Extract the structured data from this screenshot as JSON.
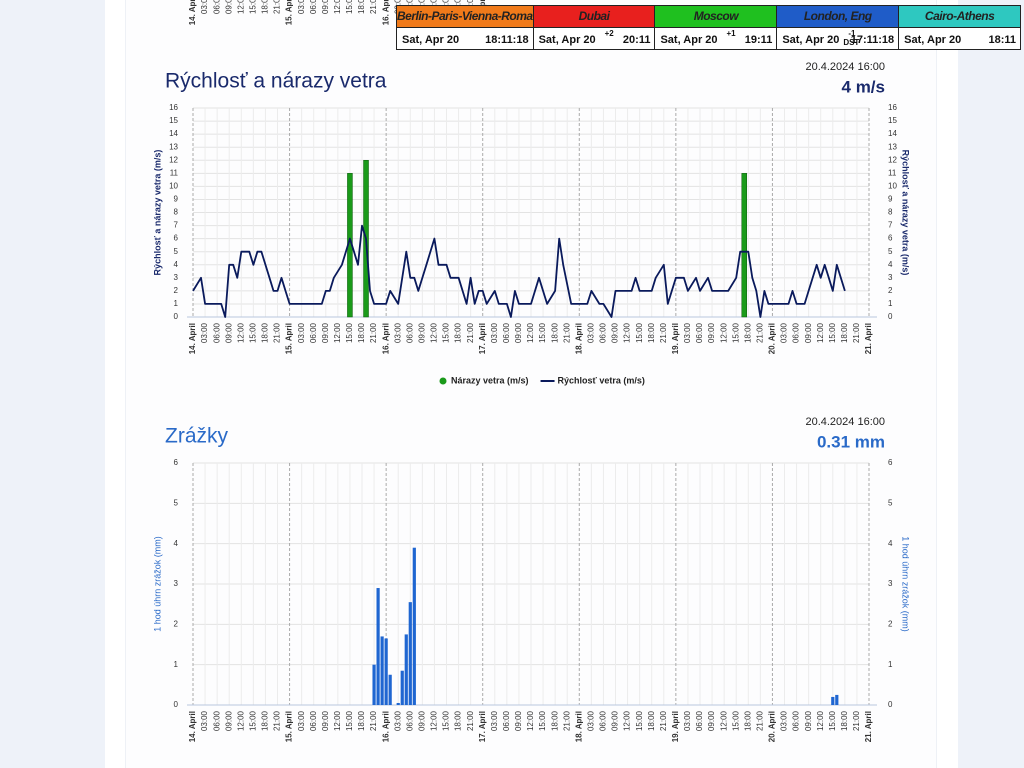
{
  "clocks": [
    {
      "city": "Berlin-Paris-Vienna-Roma",
      "date": "Sat, Apr 20",
      "time": "18:11:18",
      "color": "#f07a1a"
    },
    {
      "city": "Dubai",
      "date": "Sat, Apr 20",
      "offset": "+2",
      "time": "20:11",
      "color": "#e8201e"
    },
    {
      "city": "Moscow",
      "date": "Sat, Apr 20",
      "offset": "+1",
      "time": "19:11",
      "color": "#1fc01f"
    },
    {
      "city": "London, Eng",
      "date": "Sat, Apr 20",
      "offset": "-1",
      "dst": "DST",
      "time": "17:11:18",
      "color": "#1f5cc8"
    },
    {
      "city": "Cairo-Athens",
      "date": "Sat, Apr 20",
      "time": "18:11",
      "color": "#2ec8c0"
    }
  ],
  "chart_data": [
    {
      "type": "line",
      "title": "Rýchlosť a nárazy vetra",
      "timestamp": "20.4.2024 16:00",
      "current": "4 m/s",
      "ylabel": "Rýchlosť a nárazy vetra (m/s)",
      "xlim": [
        0,
        168
      ],
      "xticks": [
        {
          "value": 0,
          "label": "14. April"
        },
        {
          "value": 3,
          "label": "03:00"
        },
        {
          "value": 6,
          "label": "06:00"
        },
        {
          "value": 9,
          "label": "09:00"
        },
        {
          "value": 12,
          "label": "12:00"
        },
        {
          "value": 15,
          "label": "15:00"
        },
        {
          "value": 18,
          "label": "18:00"
        },
        {
          "value": 21,
          "label": "21:00"
        },
        {
          "value": 24,
          "label": "15. April"
        },
        {
          "value": 27,
          "label": "03:00"
        },
        {
          "value": 30,
          "label": "06:00"
        },
        {
          "value": 33,
          "label": "09:00"
        },
        {
          "value": 36,
          "label": "12:00"
        },
        {
          "value": 39,
          "label": "15:00"
        },
        {
          "value": 42,
          "label": "18:00"
        },
        {
          "value": 45,
          "label": "21:00"
        },
        {
          "value": 48,
          "label": "16. April"
        },
        {
          "value": 51,
          "label": "03:00"
        },
        {
          "value": 54,
          "label": "06:00"
        },
        {
          "value": 57,
          "label": "09:00"
        },
        {
          "value": 60,
          "label": "12:00"
        },
        {
          "value": 63,
          "label": "15:00"
        },
        {
          "value": 66,
          "label": "18:00"
        },
        {
          "value": 69,
          "label": "21:00"
        },
        {
          "value": 72,
          "label": "17. April"
        },
        {
          "value": 75,
          "label": "03:00"
        },
        {
          "value": 78,
          "label": "06:00"
        },
        {
          "value": 81,
          "label": "09:00"
        },
        {
          "value": 84,
          "label": "12:00"
        },
        {
          "value": 87,
          "label": "15:00"
        },
        {
          "value": 90,
          "label": "18:00"
        },
        {
          "value": 93,
          "label": "21:00"
        },
        {
          "value": 96,
          "label": "18. April"
        },
        {
          "value": 99,
          "label": "03:00"
        },
        {
          "value": 102,
          "label": "06:00"
        },
        {
          "value": 105,
          "label": "09:00"
        },
        {
          "value": 108,
          "label": "12:00"
        },
        {
          "value": 111,
          "label": "15:00"
        },
        {
          "value": 114,
          "label": "18:00"
        },
        {
          "value": 117,
          "label": "21:00"
        },
        {
          "value": 120,
          "label": "19. April"
        },
        {
          "value": 123,
          "label": "03:00"
        },
        {
          "value": 126,
          "label": "06:00"
        },
        {
          "value": 129,
          "label": "09:00"
        },
        {
          "value": 132,
          "label": "12:00"
        },
        {
          "value": 135,
          "label": "15:00"
        },
        {
          "value": 138,
          "label": "18:00"
        },
        {
          "value": 141,
          "label": "21:00"
        },
        {
          "value": 144,
          "label": "20. April"
        },
        {
          "value": 147,
          "label": "03:00"
        },
        {
          "value": 150,
          "label": "06:00"
        },
        {
          "value": 153,
          "label": "09:00"
        },
        {
          "value": 156,
          "label": "12:00"
        },
        {
          "value": 159,
          "label": "15:00"
        },
        {
          "value": 162,
          "label": "18:00"
        },
        {
          "value": 165,
          "label": "21:00"
        },
        {
          "value": 168,
          "label": "21. April"
        }
      ],
      "ylim": [
        0,
        16
      ],
      "yticks": [
        0,
        1,
        2,
        3,
        4,
        5,
        6,
        7,
        8,
        9,
        10,
        11,
        12,
        13,
        14,
        15,
        16
      ],
      "grid": true,
      "legend": "bottom",
      "series": [
        {
          "name": "Nárazy vetra (m/s)",
          "type": "bar",
          "color": "#1a9a1a",
          "x": [
            39,
            43,
            137
          ],
          "values": [
            11,
            12,
            11
          ]
        },
        {
          "name": "Rýchlosť vetra (m/s)",
          "type": "line",
          "color": "#0a1a5c",
          "x": [
            0,
            2,
            3,
            7,
            8,
            9,
            10,
            11,
            12,
            14,
            15,
            16,
            17,
            19,
            20,
            21,
            22,
            23,
            24,
            32,
            33,
            34,
            35,
            37,
            39,
            40,
            41,
            42,
            43,
            44,
            45,
            48,
            49,
            51,
            53,
            54,
            55,
            56,
            58,
            60,
            61,
            63,
            64,
            66,
            68,
            69,
            70,
            71,
            72,
            73,
            75,
            76,
            78,
            79,
            80,
            81,
            84,
            86,
            88,
            90,
            91,
            92,
            94,
            98,
            99,
            101,
            102,
            104,
            105,
            109,
            110,
            111,
            114,
            115,
            117,
            118,
            119,
            120,
            122,
            123,
            125,
            126,
            128,
            129,
            133,
            135,
            136,
            138,
            139,
            140,
            141,
            142,
            143,
            148,
            149,
            150,
            152,
            153,
            155,
            156,
            157,
            158,
            159,
            160,
            162
          ],
          "values": [
            2,
            3,
            1,
            1,
            0,
            4,
            4,
            3,
            5,
            5,
            4,
            5,
            5,
            3,
            2,
            2,
            3,
            2,
            1,
            1,
            2,
            2,
            3,
            4,
            6,
            5,
            4,
            7,
            6,
            2,
            1,
            1,
            2,
            1,
            5,
            3,
            3,
            2,
            4,
            6,
            4,
            4,
            3,
            3,
            1,
            3,
            1,
            2,
            2,
            1,
            2,
            1,
            1,
            0,
            2,
            1,
            1,
            3,
            1,
            2,
            6,
            4,
            1,
            1,
            2,
            1,
            1,
            0,
            2,
            2,
            3,
            2,
            2,
            3,
            4,
            1,
            2,
            3,
            3,
            2,
            3,
            2,
            3,
            2,
            2,
            3,
            5,
            5,
            3,
            2,
            0,
            2,
            1,
            1,
            2,
            1,
            1,
            2,
            4,
            3,
            4,
            3,
            2,
            4,
            2
          ]
        }
      ]
    },
    {
      "type": "bar",
      "title": "Zrážky",
      "timestamp": "20.4.2024 16:00",
      "current": "0.31 mm",
      "ylabel": "1 hod úhrn zrážok (mm)",
      "xlim": [
        0,
        168
      ],
      "xticks": [
        {
          "value": 0,
          "label": "14. April"
        },
        {
          "value": 3,
          "label": "03:00"
        },
        {
          "value": 6,
          "label": "06:00"
        },
        {
          "value": 9,
          "label": "09:00"
        },
        {
          "value": 12,
          "label": "12:00"
        },
        {
          "value": 15,
          "label": "15:00"
        },
        {
          "value": 18,
          "label": "18:00"
        },
        {
          "value": 21,
          "label": "21:00"
        },
        {
          "value": 24,
          "label": "15. April"
        },
        {
          "value": 27,
          "label": "03:00"
        },
        {
          "value": 30,
          "label": "06:00"
        },
        {
          "value": 33,
          "label": "09:00"
        },
        {
          "value": 36,
          "label": "12:00"
        },
        {
          "value": 39,
          "label": "15:00"
        },
        {
          "value": 42,
          "label": "18:00"
        },
        {
          "value": 45,
          "label": "21:00"
        },
        {
          "value": 48,
          "label": "16. April"
        },
        {
          "value": 51,
          "label": "03:00"
        },
        {
          "value": 54,
          "label": "06:00"
        },
        {
          "value": 57,
          "label": "09:00"
        },
        {
          "value": 60,
          "label": "12:00"
        },
        {
          "value": 63,
          "label": "15:00"
        },
        {
          "value": 66,
          "label": "18:00"
        },
        {
          "value": 69,
          "label": "21:00"
        },
        {
          "value": 72,
          "label": "17. April"
        },
        {
          "value": 75,
          "label": "03:00"
        },
        {
          "value": 78,
          "label": "06:00"
        },
        {
          "value": 81,
          "label": "09:00"
        },
        {
          "value": 84,
          "label": "12:00"
        },
        {
          "value": 87,
          "label": "15:00"
        },
        {
          "value": 90,
          "label": "18:00"
        },
        {
          "value": 93,
          "label": "21:00"
        },
        {
          "value": 96,
          "label": "18. April"
        },
        {
          "value": 99,
          "label": "03:00"
        },
        {
          "value": 102,
          "label": "06:00"
        },
        {
          "value": 105,
          "label": "09:00"
        },
        {
          "value": 108,
          "label": "12:00"
        },
        {
          "value": 111,
          "label": "15:00"
        },
        {
          "value": 114,
          "label": "18:00"
        },
        {
          "value": 117,
          "label": "21:00"
        },
        {
          "value": 120,
          "label": "19. April"
        },
        {
          "value": 123,
          "label": "03:00"
        },
        {
          "value": 126,
          "label": "06:00"
        },
        {
          "value": 129,
          "label": "09:00"
        },
        {
          "value": 132,
          "label": "12:00"
        },
        {
          "value": 135,
          "label": "15:00"
        },
        {
          "value": 138,
          "label": "18:00"
        },
        {
          "value": 141,
          "label": "21:00"
        },
        {
          "value": 144,
          "label": "20. April"
        },
        {
          "value": 147,
          "label": "03:00"
        },
        {
          "value": 150,
          "label": "06:00"
        },
        {
          "value": 153,
          "label": "09:00"
        },
        {
          "value": 156,
          "label": "12:00"
        },
        {
          "value": 159,
          "label": "15:00"
        },
        {
          "value": 162,
          "label": "18:00"
        },
        {
          "value": 165,
          "label": "21:00"
        },
        {
          "value": 168,
          "label": "21. April"
        }
      ],
      "ylim": [
        0,
        6
      ],
      "yticks": [
        0,
        1,
        2,
        3,
        4,
        5,
        6
      ],
      "grid": true,
      "series": [
        {
          "type": "bar",
          "color": "#1f66d1",
          "x": [
            45,
            46,
            47,
            48,
            49,
            51,
            52,
            53,
            54,
            55,
            159,
            160
          ],
          "values": [
            1,
            2.9,
            1.7,
            1.65,
            0.75,
            0.05,
            0.85,
            1.75,
            2.55,
            3.9,
            0.2,
            0.25
          ]
        }
      ]
    }
  ]
}
